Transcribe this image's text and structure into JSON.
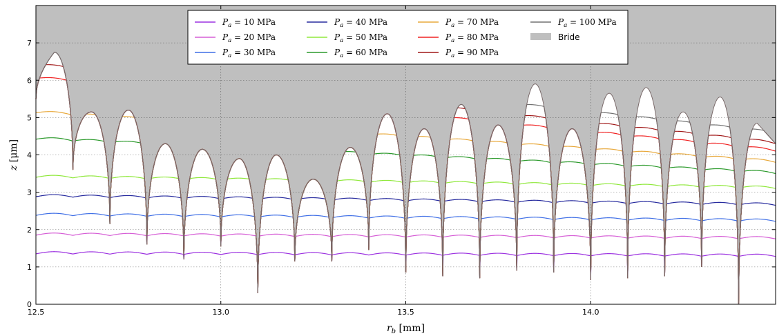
{
  "chart_data": {
    "type": "line",
    "xlabel": "r_b [mm]",
    "ylabel": "z [μm]",
    "xlim": [
      12.5,
      14.5
    ],
    "ylim": [
      0,
      8
    ],
    "xticks": [
      12.5,
      13.0,
      13.5,
      14.0
    ],
    "xtick_labels": [
      "12.5",
      "13.0",
      "13.5",
      "14.0"
    ],
    "yticks": [
      0,
      1,
      2,
      3,
      4,
      5,
      6,
      7
    ],
    "ytick_labels": [
      "0",
      "1",
      "2",
      "3",
      "4",
      "5",
      "6",
      "7"
    ],
    "grid": true,
    "legend_position": "top-center",
    "bride_color": "#bfbfbf",
    "bride_label": "Bride",
    "surface": {
      "cusp_x": [
        12.6,
        12.7,
        12.8,
        12.9,
        13.0,
        13.1,
        13.2,
        13.3,
        13.4,
        13.5,
        13.6,
        13.7,
        13.8,
        13.9,
        14.0,
        14.1,
        14.2,
        14.3,
        14.4
      ],
      "cusp_z": [
        3.6,
        2.15,
        1.6,
        1.2,
        1.55,
        0.3,
        1.15,
        1.15,
        1.45,
        0.85,
        0.75,
        0.7,
        0.9,
        0.85,
        0.65,
        0.7,
        0.75,
        1.0,
        0.0
      ],
      "peak_x": [
        12.55,
        12.65,
        12.75,
        12.85,
        12.95,
        13.05,
        13.15,
        13.25,
        13.35,
        13.45,
        13.55,
        13.65,
        13.75,
        13.85,
        13.95,
        14.05,
        14.15,
        14.25,
        14.35,
        14.45
      ],
      "peak_z": [
        6.75,
        5.15,
        5.2,
        4.3,
        4.15,
        3.9,
        4.0,
        3.35,
        4.2,
        5.1,
        4.7,
        5.35,
        4.8,
        5.9,
        4.7,
        5.65,
        5.8,
        5.15,
        5.55,
        4.85
      ],
      "start_z": 5.5,
      "end_z": 4.3
    },
    "series": [
      {
        "name": "P_a = 10 MPa",
        "color": "#9b30e0",
        "values_left": 1.35,
        "values_right": 1.28
      },
      {
        "name": "P_a = 20 MPa",
        "color": "#d65ed6",
        "values_left": 1.85,
        "values_right": 1.75
      },
      {
        "name": "P_a = 30 MPa",
        "color": "#3f6fe6",
        "values_left": 2.38,
        "values_right": 2.22
      },
      {
        "name": "P_a = 40 MPa",
        "color": "#262a9e",
        "values_left": 2.88,
        "values_right": 2.65
      },
      {
        "name": "P_a = 50 MPa",
        "color": "#8fe83a",
        "values_left": 3.4,
        "values_right": 3.1
      },
      {
        "name": "P_a = 60 MPa",
        "color": "#2c9a2c",
        "values_left": 4.42,
        "values_right": 3.5
      },
      {
        "name": "P_a = 70 MPa",
        "color": "#e8a83a",
        "values_left": 5.13,
        "values_right": 3.8
      },
      {
        "name": "P_a = 80 MPa",
        "color": "#f02020",
        "values_left": 6.05,
        "values_right": 4.1
      },
      {
        "name": "P_a = 90 MPa",
        "color": "#a01818",
        "values_left": 6.4,
        "values_right": 4.3
      },
      {
        "name": "P_a = 100 MPa",
        "color": "#707070",
        "values_left": 6.75,
        "values_right": 4.57
      }
    ],
    "legend": [
      {
        "label": "P_a = 10 MPa",
        "color": "#9b30e0"
      },
      {
        "label": "P_a = 20 MPa",
        "color": "#d65ed6"
      },
      {
        "label": "P_a = 30 MPa",
        "color": "#3f6fe6"
      },
      {
        "label": "P_a = 40 MPa",
        "color": "#262a9e"
      },
      {
        "label": "P_a = 50 MPa",
        "color": "#8fe83a"
      },
      {
        "label": "P_a = 60 MPa",
        "color": "#2c9a2c"
      },
      {
        "label": "P_a = 70 MPa",
        "color": "#e8a83a"
      },
      {
        "label": "P_a = 80 MPa",
        "color": "#f02020"
      },
      {
        "label": "P_a = 90 MPa",
        "color": "#a01818"
      },
      {
        "label": "P_a = 100 MPa",
        "color": "#707070"
      },
      {
        "label": "Bride",
        "color": "#bfbfbf"
      }
    ]
  }
}
